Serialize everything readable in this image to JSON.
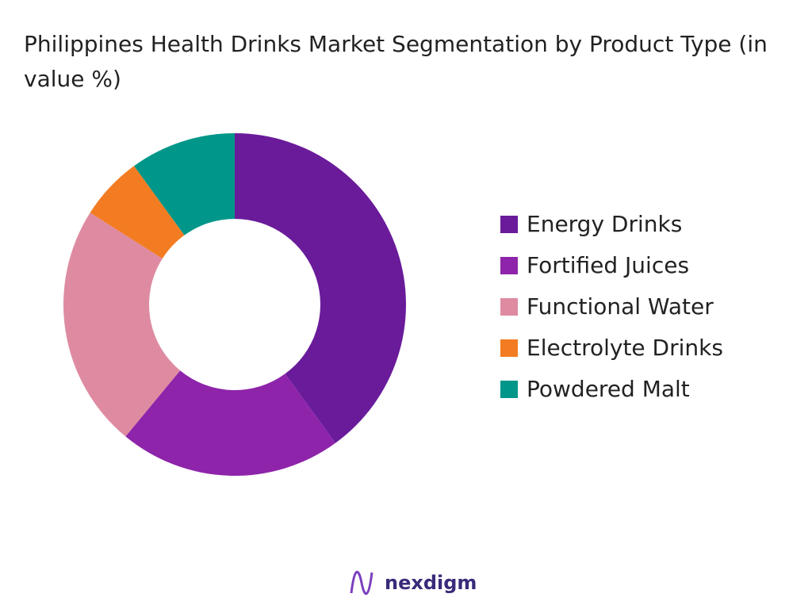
{
  "chart_data": {
    "type": "pie",
    "title": "Philippines Health Drinks Market Segmentation by Product Type (in value %)",
    "categories": [
      "Energy Drinks",
      "Fortified Juices",
      "Functional Water",
      "Electrolyte Drinks",
      "Powdered Malt"
    ],
    "values": [
      40,
      21,
      23,
      6,
      10
    ],
    "colors": [
      "#6a1b9a",
      "#8e24aa",
      "#de8ba1",
      "#f37c22",
      "#00968a"
    ],
    "legend": "right"
  },
  "footer": {
    "logo": "nexdigm"
  }
}
